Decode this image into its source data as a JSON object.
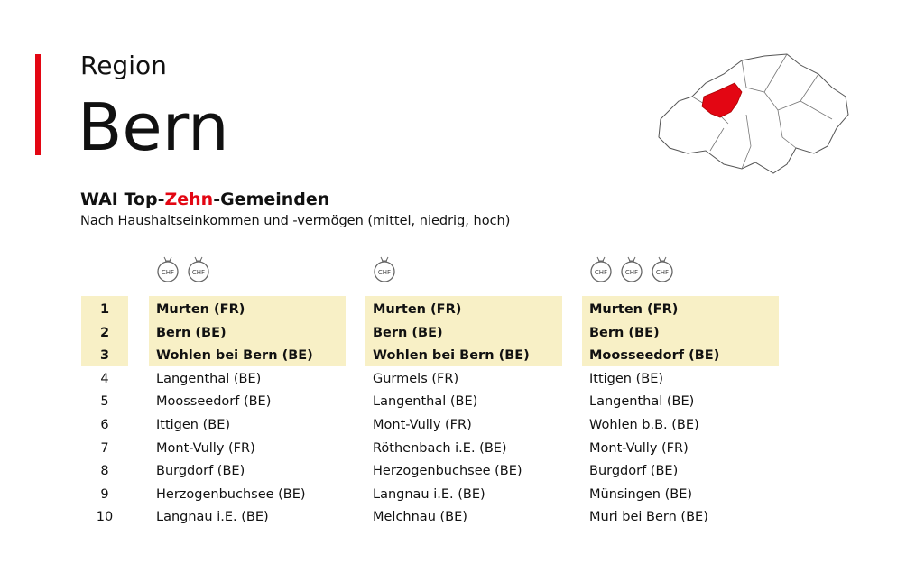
{
  "header": {
    "kicker": "Region",
    "title": "Bern"
  },
  "section": {
    "title_parts": [
      "WAI Top-",
      "Zehn",
      "-Gemeinden"
    ],
    "description": "Nach Haushaltseinkommen und -vermögen (mittel, niedrig, hoch)"
  },
  "icon_label": "CHF",
  "ranks": [
    1,
    2,
    3,
    4,
    5,
    6,
    7,
    8,
    9,
    10
  ],
  "columns": [
    {
      "icons": 2,
      "rows": [
        "Murten (FR)",
        "Bern (BE)",
        "Wohlen bei Bern (BE)",
        "Langenthal (BE)",
        "Moosseedorf (BE)",
        "Ittigen (BE)",
        "Mont-Vully (FR)",
        "Burgdorf (BE)",
        "Herzogenbuchsee (BE)",
        "Langnau i.E. (BE)"
      ]
    },
    {
      "icons": 1,
      "rows": [
        "Murten (FR)",
        "Bern (BE)",
        "Wohlen bei Bern (BE)",
        "Gurmels (FR)",
        "Langenthal (BE)",
        "Mont-Vully (FR)",
        "Röthenbach i.E. (BE)",
        "Herzogenbuchsee (BE)",
        "Langnau i.E. (BE)",
        "Melchnau (BE)"
      ]
    },
    {
      "icons": 3,
      "rows": [
        "Murten (FR)",
        "Bern (BE)",
        "Moosseedorf (BE)",
        "Ittigen (BE)",
        "Langenthal (BE)",
        "Wohlen b.B. (BE)",
        "Mont-Vully (FR)",
        "Burgdorf (BE)",
        "Münsingen (BE)",
        "Muri bei Bern (BE)"
      ]
    }
  ]
}
